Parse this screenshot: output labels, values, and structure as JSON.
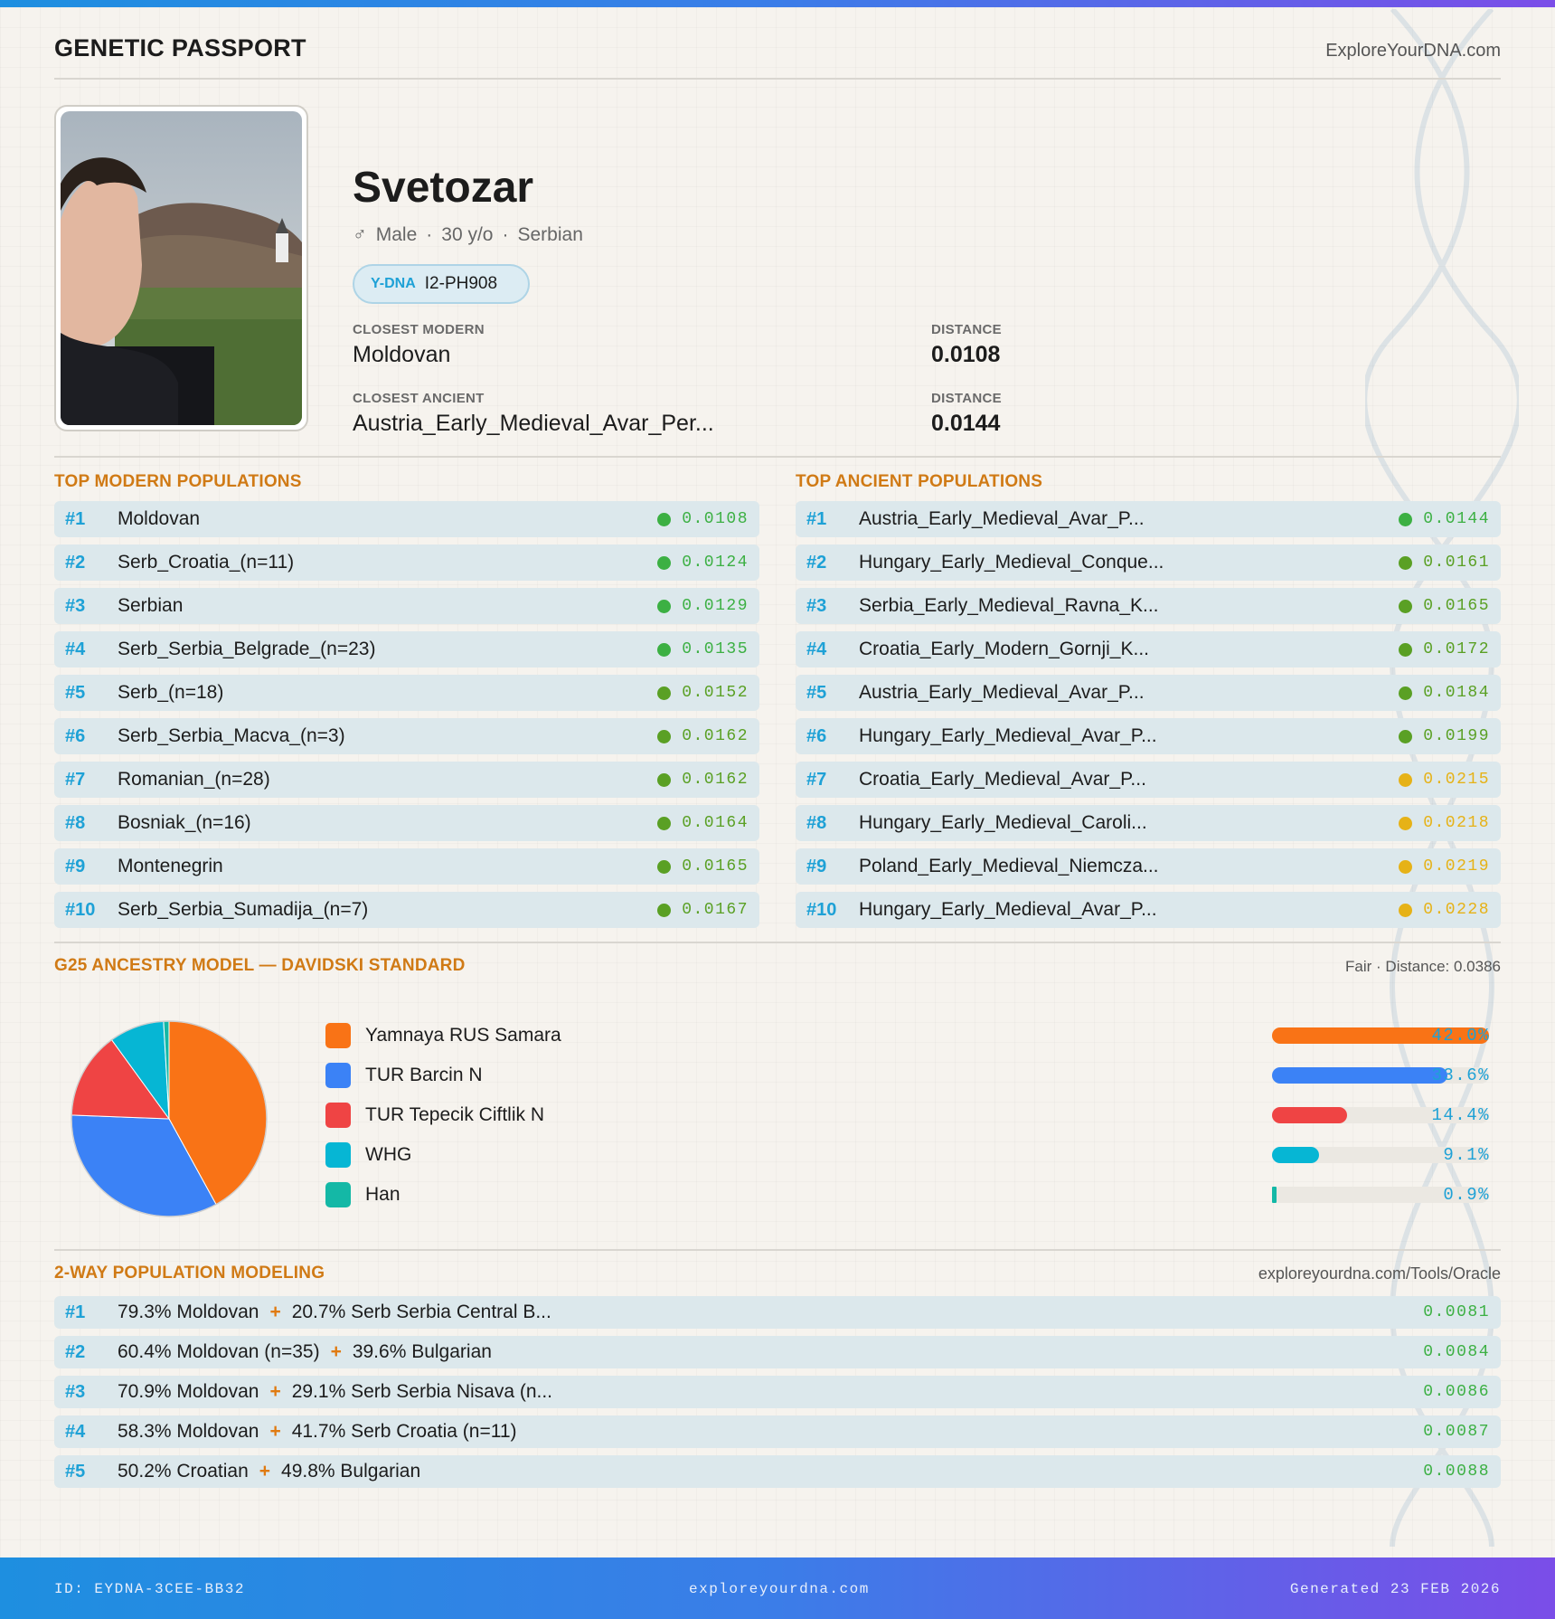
{
  "header": {
    "title": "GENETIC PASSPORT",
    "site": "ExploreYourDNA.com"
  },
  "profile": {
    "name": "Svetozar",
    "gender_symbol": "♂",
    "gender": "Male",
    "age": "30 y/o",
    "ethnicity": "Serbian",
    "ydna_label": "Y-DNA",
    "ydna_value": "I2-PH908",
    "closest_modern_label": "CLOSEST MODERN",
    "closest_modern": "Moldovan",
    "closest_modern_distance_label": "DISTANCE",
    "closest_modern_distance": "0.0108",
    "closest_ancient_label": "CLOSEST ANCIENT",
    "closest_ancient": "Austria_Early_Medieval_Avar_Per...",
    "closest_ancient_distance_label": "DISTANCE",
    "closest_ancient_distance": "0.0144"
  },
  "modern": {
    "title": "TOP MODERN POPULATIONS",
    "rows": [
      {
        "rank": "#1",
        "name": "Moldovan",
        "dist": "0.0108",
        "color": "#3cb043"
      },
      {
        "rank": "#2",
        "name": "Serb_Croatia_(n=11)",
        "dist": "0.0124",
        "color": "#3cb043"
      },
      {
        "rank": "#3",
        "name": "Serbian",
        "dist": "0.0129",
        "color": "#3cb043"
      },
      {
        "rank": "#4",
        "name": "Serb_Serbia_Belgrade_(n=23)",
        "dist": "0.0135",
        "color": "#3cb043"
      },
      {
        "rank": "#5",
        "name": "Serb_(n=18)",
        "dist": "0.0152",
        "color": "#5aa024"
      },
      {
        "rank": "#6",
        "name": "Serb_Serbia_Macva_(n=3)",
        "dist": "0.0162",
        "color": "#5aa024"
      },
      {
        "rank": "#7",
        "name": "Romanian_(n=28)",
        "dist": "0.0162",
        "color": "#5aa024"
      },
      {
        "rank": "#8",
        "name": "Bosniak_(n=16)",
        "dist": "0.0164",
        "color": "#5aa024"
      },
      {
        "rank": "#9",
        "name": "Montenegrin",
        "dist": "0.0165",
        "color": "#5aa024"
      },
      {
        "rank": "#10",
        "name": "Serb_Serbia_Sumadija_(n=7)",
        "dist": "0.0167",
        "color": "#5aa024"
      }
    ]
  },
  "ancient": {
    "title": "TOP ANCIENT POPULATIONS",
    "rows": [
      {
        "rank": "#1",
        "name": "Austria_Early_Medieval_Avar_P...",
        "dist": "0.0144",
        "color": "#3cb043"
      },
      {
        "rank": "#2",
        "name": "Hungary_Early_Medieval_Conque...",
        "dist": "0.0161",
        "color": "#5aa024"
      },
      {
        "rank": "#3",
        "name": "Serbia_Early_Medieval_Ravna_K...",
        "dist": "0.0165",
        "color": "#5aa024"
      },
      {
        "rank": "#4",
        "name": "Croatia_Early_Modern_Gornji_K...",
        "dist": "0.0172",
        "color": "#5aa024"
      },
      {
        "rank": "#5",
        "name": "Austria_Early_Medieval_Avar_P...",
        "dist": "0.0184",
        "color": "#5aa024"
      },
      {
        "rank": "#6",
        "name": "Hungary_Early_Medieval_Avar_P...",
        "dist": "0.0199",
        "color": "#5aa024"
      },
      {
        "rank": "#7",
        "name": "Croatia_Early_Medieval_Avar_P...",
        "dist": "0.0215",
        "color": "#e6b217"
      },
      {
        "rank": "#8",
        "name": "Hungary_Early_Medieval_Caroli...",
        "dist": "0.0218",
        "color": "#e6b217"
      },
      {
        "rank": "#9",
        "name": "Poland_Early_Medieval_Niemcza...",
        "dist": "0.0219",
        "color": "#e6b217"
      },
      {
        "rank": "#10",
        "name": "Hungary_Early_Medieval_Avar_P...",
        "dist": "0.0228",
        "color": "#e6b217"
      }
    ]
  },
  "ancestry": {
    "title": "G25 ANCESTRY MODEL — DAVIDSKI STANDARD",
    "fit": "Fair · Distance: 0.0386"
  },
  "chart_data": {
    "type": "pie",
    "labels": [
      "Yamnaya RUS Samara",
      "TUR Barcin N",
      "TUR Tepecik Ciftlik N",
      "WHG",
      "Han"
    ],
    "values": [
      42.0,
      33.6,
      14.4,
      9.1,
      0.9
    ],
    "value_labels": [
      "42.0%",
      "33.6%",
      "14.4%",
      "9.1%",
      "0.9%"
    ],
    "colors": [
      "#f97316",
      "#3b82f6",
      "#ef4444",
      "#06b6d4",
      "#14b8a6"
    ]
  },
  "twoway": {
    "title": "2-WAY POPULATION MODELING",
    "link": "exploreyourdna.com/Tools/Oracle",
    "plus": "+",
    "rows": [
      {
        "rank": "#1",
        "a": "79.3% Moldovan",
        "b": "20.7% Serb Serbia Central B...",
        "dist": "0.0081"
      },
      {
        "rank": "#2",
        "a": "60.4% Moldovan (n=35)",
        "b": "39.6% Bulgarian",
        "dist": "0.0084"
      },
      {
        "rank": "#3",
        "a": "70.9% Moldovan",
        "b": "29.1% Serb Serbia Nisava (n...",
        "dist": "0.0086"
      },
      {
        "rank": "#4",
        "a": "58.3% Moldovan",
        "b": "41.7% Serb Croatia (n=11)",
        "dist": "0.0087"
      },
      {
        "rank": "#5",
        "a": "50.2% Croatian",
        "b": "49.8% Bulgarian",
        "dist": "0.0088"
      }
    ]
  },
  "footer": {
    "id": "ID: EYDNA-3CEE-BB32",
    "site": "exploreyourdna.com",
    "generated": "Generated 23 FEB 2026"
  }
}
